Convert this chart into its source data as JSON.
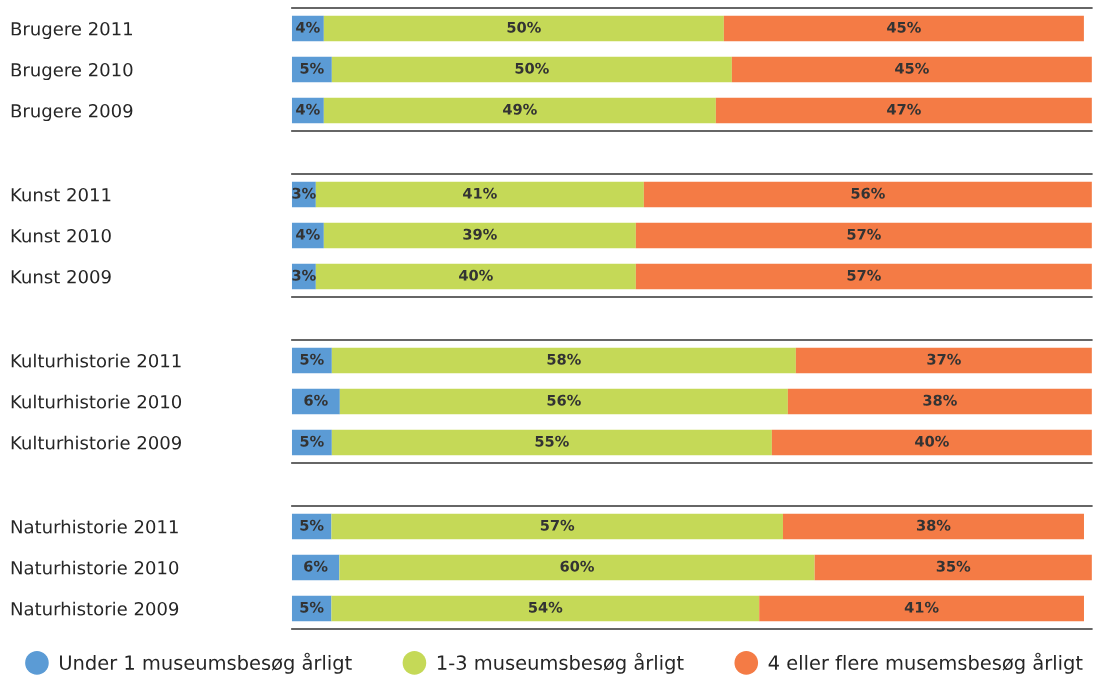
{
  "chart_data": [
    {
      "type": "bar",
      "orientation": "horizontal",
      "stacked": true,
      "tick_labels": "y",
      "grid": false,
      "categories": [
        "Brugere 2011",
        "Brugere 2010",
        "Brugere 2009"
      ],
      "series": [
        {
          "color": "#5b9bd5",
          "values": [
            4,
            5,
            4
          ],
          "value_labels": [
            "4%",
            "5%",
            "4%"
          ]
        },
        {
          "color": "#c5d957",
          "values": [
            50,
            50,
            49
          ],
          "value_labels": [
            "50%",
            "50%",
            "49%"
          ]
        },
        {
          "color": "#f47b45",
          "values": [
            45,
            45,
            47
          ],
          "value_labels": [
            "45%",
            "45%",
            "47%"
          ]
        }
      ]
    },
    {
      "type": "bar",
      "orientation": "horizontal",
      "stacked": true,
      "tick_labels": "y",
      "grid": false,
      "categories": [
        "Kunst 2011",
        "Kunst 2010",
        "Kunst 2009"
      ],
      "series": [
        {
          "color": "#5b9bd5",
          "values": [
            3,
            4,
            3
          ],
          "value_labels": [
            "3%",
            "4%",
            "3%"
          ]
        },
        {
          "color": "#c5d957",
          "values": [
            41,
            39,
            40
          ],
          "value_labels": [
            "41%",
            "39%",
            "40%"
          ]
        },
        {
          "color": "#f47b45",
          "values": [
            56,
            57,
            57
          ],
          "value_labels": [
            "56%",
            "57%",
            "57%"
          ]
        }
      ]
    },
    {
      "type": "bar",
      "orientation": "horizontal",
      "stacked": true,
      "tick_labels": "y",
      "grid": false,
      "categories": [
        "Kulturhistorie 2011",
        "Kulturhistorie 2010",
        "Kulturhistorie 2009"
      ],
      "series": [
        {
          "color": "#5b9bd5",
          "values": [
            5,
            6,
            5
          ],
          "value_labels": [
            "5%",
            "6%",
            "5%"
          ]
        },
        {
          "color": "#c5d957",
          "values": [
            58,
            56,
            55
          ],
          "value_labels": [
            "58%",
            "56%",
            "55%"
          ]
        },
        {
          "color": "#f47b45",
          "values": [
            37,
            38,
            40
          ],
          "value_labels": [
            "37%",
            "38%",
            "40%"
          ]
        }
      ]
    },
    {
      "type": "bar",
      "orientation": "horizontal",
      "stacked": true,
      "legend": "bottom",
      "tick_labels": "y",
      "grid": false,
      "categories": [
        "Naturhistorie 2011",
        "Naturhistorie 2010",
        "Naturhistorie 2009"
      ],
      "series": [
        {
          "name": "Under 1 museumsbesøg årligt",
          "color": "#5b9bd5",
          "values": [
            5,
            6,
            5
          ],
          "value_labels": [
            "5%",
            "6%",
            "5%"
          ]
        },
        {
          "name": "1-3 museumsbesøg årligt",
          "color": "#c5d957",
          "values": [
            57,
            60,
            54
          ],
          "value_labels": [
            "57%",
            "60%",
            "54%"
          ]
        },
        {
          "name": "4 eller flere musemsbesøg årligt",
          "color": "#f47b45",
          "values": [
            38,
            35,
            41
          ],
          "value_labels": [
            "38%",
            "35%",
            "41%"
          ]
        }
      ]
    }
  ]
}
